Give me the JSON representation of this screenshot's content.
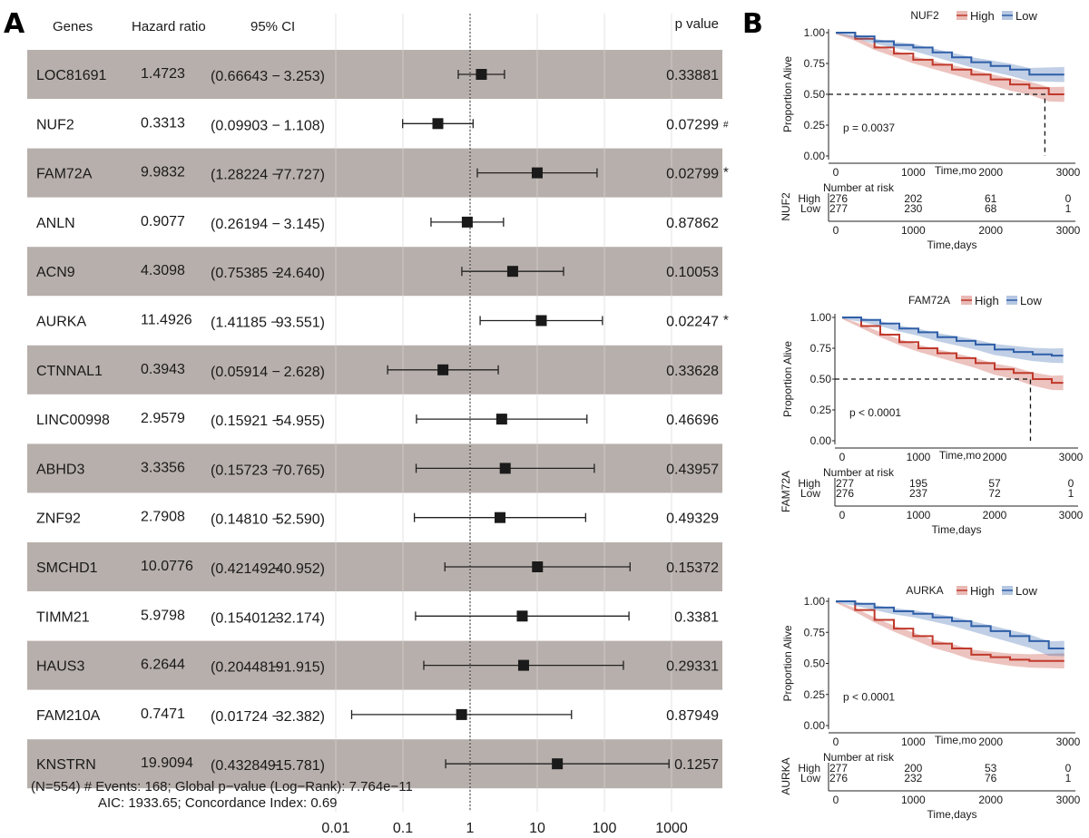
{
  "panel_labels": {
    "a": "A",
    "b": "B"
  },
  "chart_data": [
    {
      "type": "table",
      "subtype": "forest",
      "headers": {
        "gene": "Genes",
        "hr": "Hazard ratio",
        "ci": "95% CI",
        "p": "p value"
      },
      "x_scale": "log",
      "xlim": [
        0.01,
        1000
      ],
      "x_ticks": [
        "0.01",
        "0.1",
        "1",
        "10",
        "100",
        "1000"
      ],
      "reference_line": 1,
      "grid": true,
      "row_shading": "#b7afab",
      "significant_color": "#e8322b",
      "rows": [
        {
          "gene": "LOC81691",
          "hr": "1.4723",
          "ci_lo": "(0.66643 −",
          "ci_hi": "3.253)",
          "p": "0.33881",
          "flag": "",
          "hr_v": 1.4723,
          "lo_v": 0.66643,
          "hi_v": 3.253
        },
        {
          "gene": "NUF2",
          "hr": "0.3313",
          "ci_lo": "(0.09903 −",
          "ci_hi": "1.108)",
          "p": "0.07299",
          "flag": "#",
          "hr_v": 0.3313,
          "lo_v": 0.09903,
          "hi_v": 1.108
        },
        {
          "gene": "FAM72A",
          "hr": "9.9832",
          "ci_lo": "(1.28224 −",
          "ci_hi": "77.727)",
          "p": "0.02799",
          "flag": "*",
          "hr_v": 9.9832,
          "lo_v": 1.28224,
          "hi_v": 77.727
        },
        {
          "gene": "ANLN",
          "hr": "0.9077",
          "ci_lo": "(0.26194 −",
          "ci_hi": "3.145)",
          "p": "0.87862",
          "flag": "",
          "hr_v": 0.9077,
          "lo_v": 0.26194,
          "hi_v": 3.145
        },
        {
          "gene": "ACN9",
          "hr": "4.3098",
          "ci_lo": "(0.75385 −",
          "ci_hi": "24.640)",
          "p": "0.10053",
          "flag": "",
          "hr_v": 4.3098,
          "lo_v": 0.75385,
          "hi_v": 24.64
        },
        {
          "gene": "AURKA",
          "hr": "11.4926",
          "ci_lo": "(1.41185 −",
          "ci_hi": "93.551)",
          "p": "0.02247",
          "flag": "*",
          "hr_v": 11.4926,
          "lo_v": 1.41185,
          "hi_v": 93.551
        },
        {
          "gene": "CTNNAL1",
          "hr": "0.3943",
          "ci_lo": "(0.05914 −",
          "ci_hi": "2.628)",
          "p": "0.33628",
          "flag": "",
          "hr_v": 0.3943,
          "lo_v": 0.05914,
          "hi_v": 2.628
        },
        {
          "gene": "LINC00998",
          "hr": "2.9579",
          "ci_lo": "(0.15921 −",
          "ci_hi": "54.955)",
          "p": "0.46696",
          "flag": "",
          "hr_v": 2.9579,
          "lo_v": 0.15921,
          "hi_v": 54.955
        },
        {
          "gene": "ABHD3",
          "hr": "3.3356",
          "ci_lo": "(0.15723 −",
          "ci_hi": "70.765)",
          "p": "0.43957",
          "flag": "",
          "hr_v": 3.3356,
          "lo_v": 0.15723,
          "hi_v": 70.765
        },
        {
          "gene": "ZNF92",
          "hr": "2.7908",
          "ci_lo": "(0.14810 −",
          "ci_hi": "52.590)",
          "p": "0.49329",
          "flag": "",
          "hr_v": 2.7908,
          "lo_v": 0.1481,
          "hi_v": 52.59
        },
        {
          "gene": "SMCHD1",
          "hr": "10.0776",
          "ci_lo": "(0.42149 −",
          "ci_hi": "240.952)",
          "p": "0.15372",
          "flag": "",
          "hr_v": 10.0776,
          "lo_v": 0.42149,
          "hi_v": 240.952
        },
        {
          "gene": "TIMM21",
          "hr": "5.9798",
          "ci_lo": "(0.15401 −",
          "ci_hi": "232.174)",
          "p": "0.3381",
          "flag": "",
          "hr_v": 5.9798,
          "lo_v": 0.15401,
          "hi_v": 232.174
        },
        {
          "gene": "HAUS3",
          "hr": "6.2644",
          "ci_lo": "(0.20448 −",
          "ci_hi": "191.915)",
          "p": "0.29331",
          "flag": "",
          "hr_v": 6.2644,
          "lo_v": 0.20448,
          "hi_v": 191.915
        },
        {
          "gene": "FAM210A",
          "hr": "0.7471",
          "ci_lo": "(0.01724 −",
          "ci_hi": "32.382)",
          "p": "0.87949",
          "flag": "",
          "hr_v": 0.7471,
          "lo_v": 0.01724,
          "hi_v": 32.382
        },
        {
          "gene": "KNSTRN",
          "hr": "19.9094",
          "ci_lo": "(0.43284 −",
          "ci_hi": "915.781)",
          "p": "0.1257",
          "flag": "",
          "hr_v": 19.9094,
          "lo_v": 0.43284,
          "hi_v": 915.781
        }
      ],
      "footer": [
        "(N=554)  # Events: 168; Global p−value (Log−Rank): 7.764e−11",
        "AIC: 1933.65; Concordance Index: 0.69"
      ]
    },
    {
      "type": "line",
      "subtype": "kaplan-meier",
      "title": "NUF2",
      "legend": [
        "High",
        "Low"
      ],
      "legend_placement": "top",
      "colors": {
        "High": "#c0392b",
        "Low": "#2f5fa8"
      },
      "ylabel": "Proportion Alive",
      "xlabel": "Time,mo",
      "ylim": [
        0,
        1
      ],
      "xlim": [
        0,
        3000
      ],
      "y_ticks": [
        "0.00",
        "0.25",
        "0.50",
        "0.75",
        "1.00"
      ],
      "x_ticks": [
        "0",
        "1000",
        "2000",
        "3000"
      ],
      "pvalue": "p = 0.0037",
      "median_time": 2700,
      "x": [
        0,
        250,
        500,
        750,
        1000,
        1250,
        1500,
        1750,
        2000,
        2250,
        2500,
        2750,
        2950
      ],
      "series": [
        {
          "name": "High",
          "values": [
            1,
            0.95,
            0.88,
            0.83,
            0.78,
            0.74,
            0.7,
            0.66,
            0.62,
            0.58,
            0.55,
            0.5,
            0.5
          ]
        },
        {
          "name": "Low",
          "values": [
            1,
            0.97,
            0.93,
            0.9,
            0.88,
            0.84,
            0.8,
            0.76,
            0.73,
            0.7,
            0.66,
            0.66,
            0.66
          ]
        }
      ],
      "risk_table": {
        "title": "Number at risk",
        "strata_label": "NUF2",
        "xlabel": "Time,days",
        "High": [
          "276",
          "202",
          "61",
          "0"
        ],
        "Low": [
          "277",
          "230",
          "68",
          "1"
        ]
      }
    },
    {
      "type": "line",
      "subtype": "kaplan-meier",
      "title": "FAM72A",
      "legend": [
        "High",
        "Low"
      ],
      "legend_placement": "top",
      "colors": {
        "High": "#c0392b",
        "Low": "#2f5fa8"
      },
      "ylabel": "Proportion Alive",
      "xlabel": "Time,mo",
      "ylim": [
        0,
        1
      ],
      "xlim": [
        0,
        3000
      ],
      "y_ticks": [
        "0.00",
        "0.25",
        "0.50",
        "0.75",
        "1.00"
      ],
      "x_ticks": [
        "0",
        "1000",
        "2000",
        "3000"
      ],
      "pvalue": "p < 0.0001",
      "median_time": 2470,
      "x": [
        0,
        250,
        500,
        750,
        1000,
        1250,
        1500,
        1750,
        2000,
        2250,
        2500,
        2750,
        2900
      ],
      "series": [
        {
          "name": "High",
          "values": [
            1,
            0.93,
            0.86,
            0.8,
            0.75,
            0.71,
            0.67,
            0.63,
            0.58,
            0.55,
            0.5,
            0.47,
            0.47
          ]
        },
        {
          "name": "Low",
          "values": [
            1,
            0.98,
            0.95,
            0.91,
            0.88,
            0.84,
            0.81,
            0.78,
            0.74,
            0.72,
            0.7,
            0.69,
            0.69
          ]
        }
      ],
      "risk_table": {
        "title": "Number at risk",
        "strata_label": "FAM72A",
        "xlabel": "Time,days",
        "High": [
          "277",
          "195",
          "57",
          "0"
        ],
        "Low": [
          "276",
          "237",
          "72",
          "1"
        ]
      }
    },
    {
      "type": "line",
      "subtype": "kaplan-meier",
      "title": "AURKA",
      "legend": [
        "High",
        "Low"
      ],
      "legend_placement": "top",
      "colors": {
        "High": "#c0392b",
        "Low": "#2f5fa8"
      },
      "ylabel": "Proportion Alive",
      "xlabel": "Time,mo",
      "ylim": [
        0,
        1
      ],
      "xlim": [
        0,
        3000
      ],
      "y_ticks": [
        "0.00",
        "0.25",
        "0.50",
        "0.75",
        "1.00"
      ],
      "x_ticks": [
        "0",
        "1000",
        "2000",
        "3000"
      ],
      "pvalue": "p < 0.0001",
      "x": [
        0,
        250,
        500,
        750,
        1000,
        1250,
        1500,
        1750,
        2000,
        2250,
        2500,
        2750,
        2950
      ],
      "series": [
        {
          "name": "High",
          "values": [
            1,
            0.93,
            0.85,
            0.78,
            0.72,
            0.66,
            0.62,
            0.57,
            0.55,
            0.53,
            0.52,
            0.52,
            0.52
          ]
        },
        {
          "name": "Low",
          "values": [
            1,
            0.98,
            0.95,
            0.92,
            0.9,
            0.87,
            0.84,
            0.8,
            0.76,
            0.72,
            0.68,
            0.62,
            0.62
          ]
        }
      ],
      "risk_table": {
        "title": "Number at risk",
        "strata_label": "AURKA",
        "xlabel": "Time,days",
        "High": [
          "277",
          "200",
          "53",
          "0"
        ],
        "Low": [
          "276",
          "232",
          "76",
          "1"
        ]
      }
    }
  ]
}
